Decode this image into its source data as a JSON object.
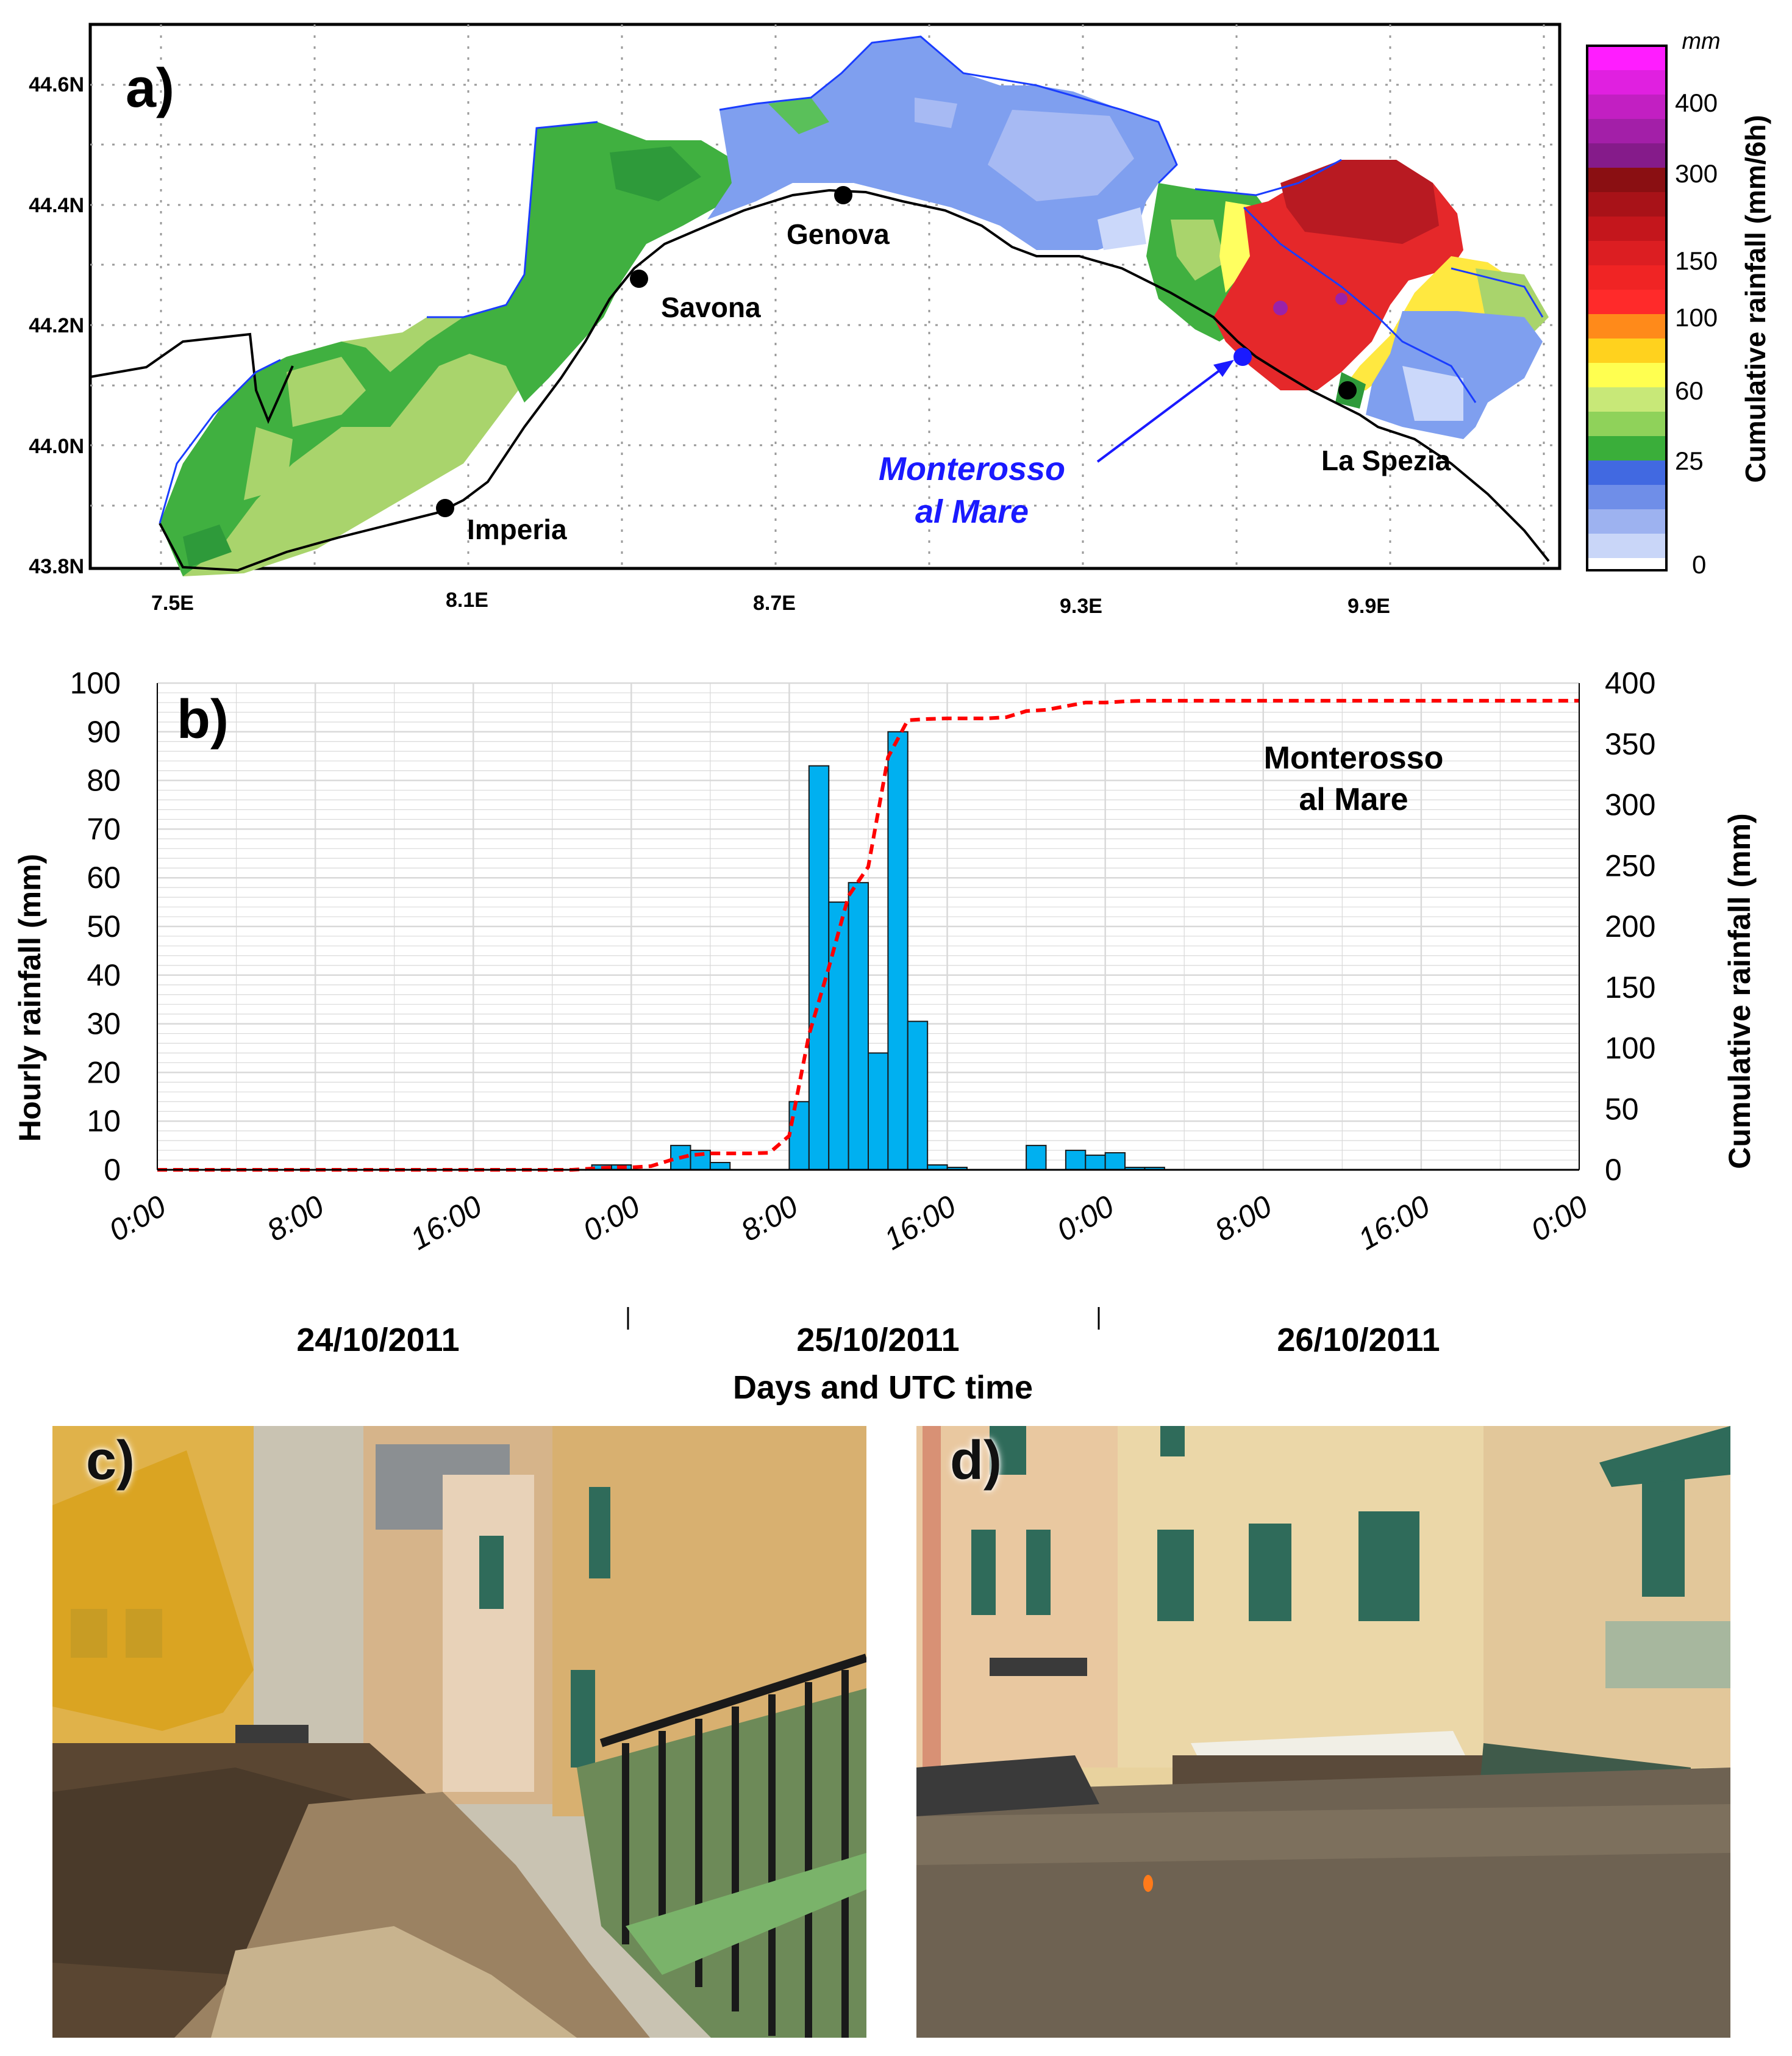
{
  "panels": {
    "a": {
      "label": "a)",
      "colorbar": {
        "unit": "mm",
        "title": "Cumulative rainfall (mm/6h)",
        "ticks": [
          "400",
          "300",
          "150",
          "100",
          "60",
          "25",
          "0"
        ]
      },
      "lat_labels": [
        "44.6N",
        "44.4N",
        "44.2N",
        "44.0N",
        "43.8N"
      ],
      "lon_labels": [
        "7.5E",
        "8.1E",
        "8.7E",
        "9.3E",
        "9.9E"
      ],
      "cities": [
        "Genova",
        "Savona",
        "Imperia",
        "La Spezia"
      ],
      "highlight": {
        "line1": "Monterosso",
        "line2": "al Mare",
        "color": "#1a1aff"
      }
    },
    "b": {
      "label": "b)",
      "station": {
        "line1": "Monterosso",
        "line2": "al Mare"
      },
      "left_axis_label": "Hourly rainfall (mm)",
      "right_axis_label": "Cumulative rainfall (mm)",
      "x_axis_label": "Days and UTC time",
      "left_ticks": [
        "0",
        "10",
        "20",
        "30",
        "40",
        "50",
        "60",
        "70",
        "80",
        "90",
        "100"
      ],
      "right_ticks": [
        "0",
        "50",
        "100",
        "150",
        "200",
        "250",
        "300",
        "350",
        "400"
      ],
      "time_ticks": [
        "0:00",
        "8:00",
        "16:00",
        "0:00",
        "8:00",
        "16:00",
        "0:00",
        "8:00",
        "16:00",
        "0:00"
      ],
      "days": [
        "24/10/2011",
        "25/10/2011",
        "26/10/2011"
      ]
    },
    "c": {
      "label": "c)"
    },
    "d": {
      "label": "d)"
    }
  },
  "colors": {
    "bar": "#00b0f0",
    "cumulative_line": "#ff0000",
    "grid": "#d9d9d9"
  },
  "chart_data": {
    "type": "bar",
    "x_unit": "hours since 24/10/2011 0:00 UTC",
    "x": [
      22,
      23,
      26,
      27,
      28,
      32,
      33,
      34,
      35,
      36,
      37,
      38,
      39,
      40,
      41,
      44,
      46,
      47,
      48,
      49,
      50
    ],
    "ylim_left": [
      0,
      100
    ],
    "ylim_right": [
      0,
      400
    ],
    "xlim": [
      0,
      72
    ],
    "series": [
      {
        "axis": "left",
        "type": "bar",
        "values": [
          1,
          1,
          5,
          4,
          1.5,
          14,
          83,
          55,
          59,
          24,
          90,
          30.5,
          1,
          0.5,
          0,
          5,
          4,
          3,
          3.5,
          0.5,
          0.5
        ]
      },
      {
        "axis": "right",
        "type": "line",
        "style": "dashed",
        "x": [
          0,
          21,
          22,
          23,
          24,
          25,
          26,
          27,
          28,
          29,
          30,
          31,
          32,
          33,
          34,
          35,
          36,
          37,
          38,
          39,
          40,
          41,
          42,
          43,
          44,
          45,
          46,
          47,
          48,
          49,
          50,
          51,
          72
        ],
        "values": [
          0,
          0,
          1,
          2,
          2,
          3,
          8,
          12,
          13.5,
          13.5,
          13.5,
          14,
          28,
          111,
          166,
          225,
          249,
          339,
          369.5,
          370.5,
          371,
          371,
          371,
          372,
          377,
          378,
          381,
          384,
          384,
          385,
          385.5,
          385.5,
          385.5
        ]
      }
    ]
  }
}
